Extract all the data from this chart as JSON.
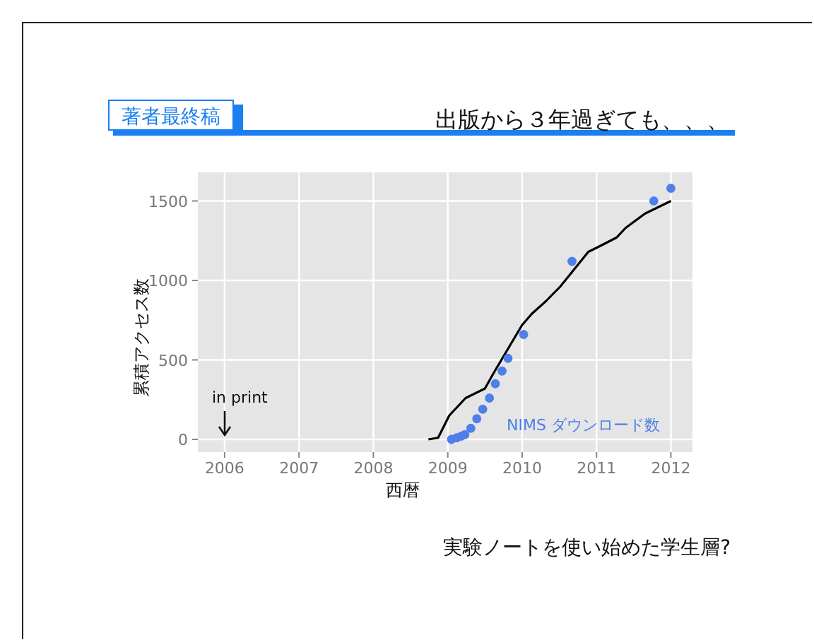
{
  "chart_data": {
    "type": "line",
    "title": "出版から３年過ぎても、、、",
    "subtitle": "著者最終稿",
    "xlabel": "西暦",
    "ylabel": "累積アクセス数",
    "annotations": [
      "in print",
      "実験ノートを使い始めた学生層?"
    ],
    "xlim": [
      2005.64,
      2012.29
    ],
    "ylim": [
      -80,
      1680
    ],
    "xticks": [
      2006,
      2007,
      2008,
      2009,
      2010,
      2011,
      2012
    ],
    "yticks": [
      0,
      500,
      1000,
      1500
    ],
    "grid": true,
    "series": [
      {
        "color": "#000000",
        "line_style": "solid",
        "marker": "none",
        "x": [
          2008.74,
          2008.87,
          2009.02,
          2009.24,
          2009.5,
          2009.62,
          2009.81,
          2010.0,
          2010.13,
          2010.32,
          2010.51,
          2010.7,
          2010.89,
          2011.02,
          2011.27,
          2011.39,
          2011.65,
          2012.0
        ],
        "values": [
          0,
          10,
          150,
          260,
          320,
          420,
          570,
          720,
          790,
          870,
          960,
          1070,
          1180,
          1210,
          1270,
          1330,
          1420,
          1500
        ]
      },
      {
        "type": "scatter",
        "name": "NIMS ダウンロード数",
        "color": "#4f7fe8",
        "marker": "circle",
        "x": [
          2009.05,
          2009.12,
          2009.18,
          2009.23,
          2009.31,
          2009.39,
          2009.47,
          2009.56,
          2009.64,
          2009.73,
          2009.81,
          2010.02,
          2010.67,
          2011.77,
          2012.0
        ],
        "values": [
          0,
          10,
          20,
          30,
          70,
          130,
          190,
          260,
          350,
          430,
          510,
          660,
          1120,
          1500,
          1580
        ]
      }
    ]
  }
}
